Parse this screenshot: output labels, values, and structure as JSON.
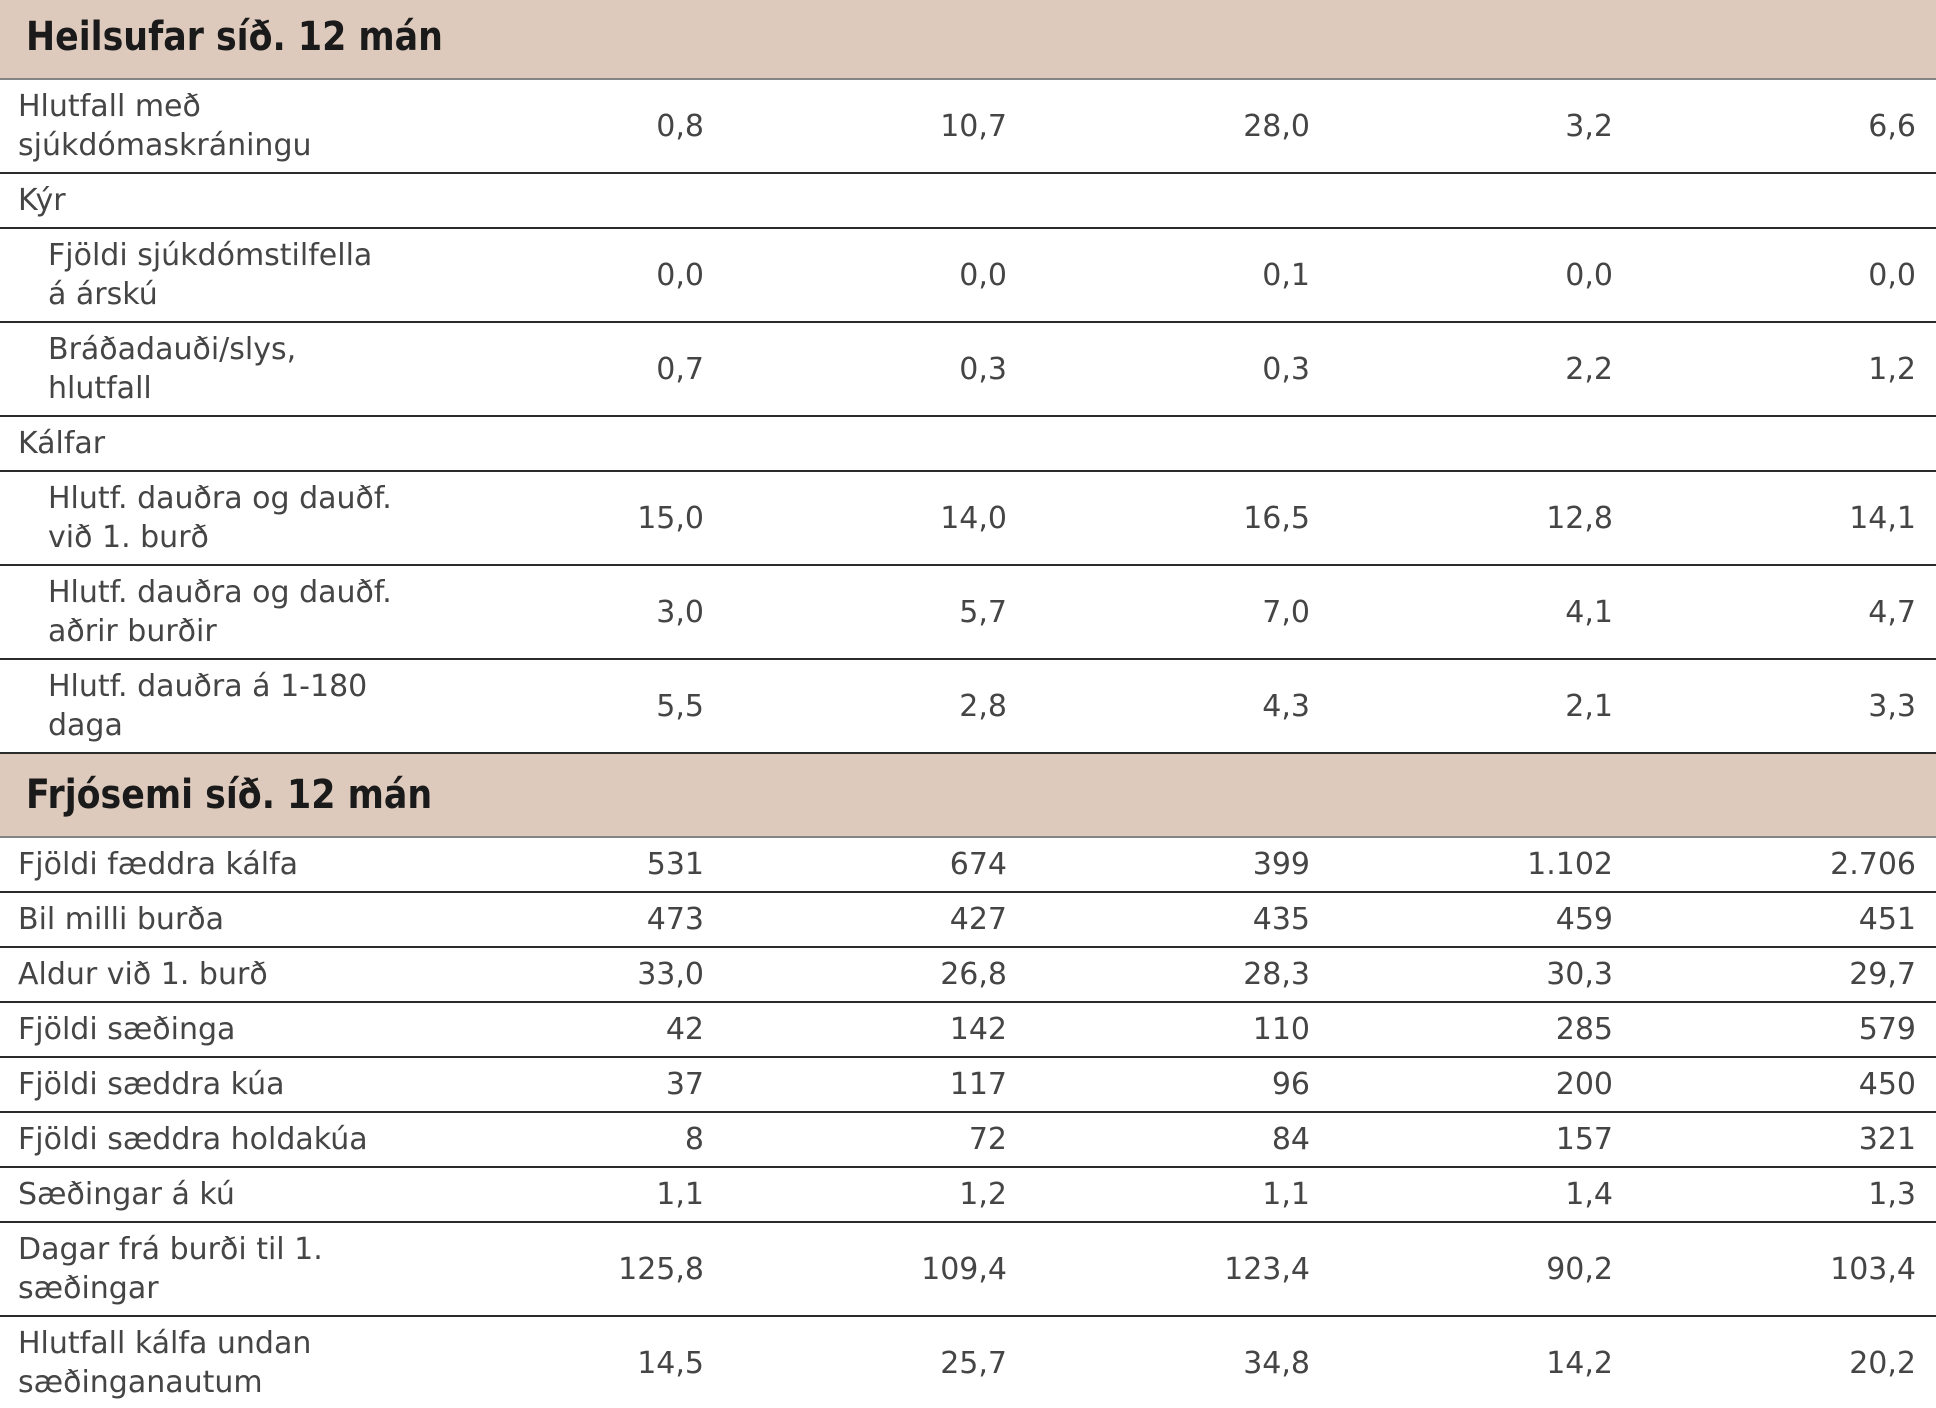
{
  "colors": {
    "section_header_bg": "#ddcabc",
    "section_header_text": "#1a1a1a",
    "row_border": "#2b2b2b",
    "section_header_border": "#848484",
    "body_text": "#454545",
    "page_bg": "#ffffff"
  },
  "chart_data": {
    "type": "table",
    "value_columns_count": 5,
    "number_format": "icelandic (decimal comma, dot thousands separator)",
    "sections": [
      {
        "title": "Heilsufar síð. 12 mán",
        "rows": [
          {
            "label": "Hlutfall með sjúkdómaskráningu",
            "label_lines": [
              "Hlutfall með",
              "sjúkdómaskráningu"
            ],
            "indent": false,
            "values": [
              "0,8",
              "10,7",
              "28,0",
              "3,2",
              "6,6"
            ]
          },
          {
            "label": "Kýr",
            "label_lines": [
              "Kýr"
            ],
            "subheader": true,
            "values": []
          },
          {
            "label": "Fjöldi sjúkdómstilfella á árskú",
            "label_lines": [
              "Fjöldi sjúkdómstilfella",
              "á árskú"
            ],
            "indent": true,
            "values": [
              "0,0",
              "0,0",
              "0,1",
              "0,0",
              "0,0"
            ]
          },
          {
            "label": "Bráðadauði/slys, hlutfall",
            "label_lines": [
              "Bráðadauði/slys,",
              "hlutfall"
            ],
            "indent": true,
            "values": [
              "0,7",
              "0,3",
              "0,3",
              "2,2",
              "1,2"
            ]
          },
          {
            "label": "Kálfar",
            "label_lines": [
              "Kálfar"
            ],
            "subheader": true,
            "values": []
          },
          {
            "label": "Hlutf. dauðra og dauðf. við 1. burð",
            "label_lines": [
              "Hlutf. dauðra og dauðf.",
              "við 1. burð"
            ],
            "indent": true,
            "values": [
              "15,0",
              "14,0",
              "16,5",
              "12,8",
              "14,1"
            ]
          },
          {
            "label": "Hlutf. dauðra og dauðf. aðrir burðir",
            "label_lines": [
              "Hlutf. dauðra og dauðf.",
              "aðrir burðir"
            ],
            "indent": true,
            "values": [
              "3,0",
              "5,7",
              "7,0",
              "4,1",
              "4,7"
            ]
          },
          {
            "label": "Hlutf. dauðra á 1-180 daga",
            "label_lines": [
              "Hlutf. dauðra á 1-180",
              "daga"
            ],
            "indent": true,
            "values": [
              "5,5",
              "2,8",
              "4,3",
              "2,1",
              "3,3"
            ]
          }
        ]
      },
      {
        "title": "Frjósemi síð. 12 mán",
        "rows": [
          {
            "label": "Fjöldi fæddra kálfa",
            "label_lines": [
              "Fjöldi fæddra kálfa"
            ],
            "indent": false,
            "values": [
              "531",
              "674",
              "399",
              "1.102",
              "2.706"
            ]
          },
          {
            "label": "Bil milli burða",
            "label_lines": [
              "Bil milli burða"
            ],
            "indent": false,
            "values": [
              "473",
              "427",
              "435",
              "459",
              "451"
            ]
          },
          {
            "label": "Aldur við 1. burð",
            "label_lines": [
              "Aldur við 1. burð"
            ],
            "indent": false,
            "values": [
              "33,0",
              "26,8",
              "28,3",
              "30,3",
              "29,7"
            ]
          },
          {
            "label": "Fjöldi sæðinga",
            "label_lines": [
              "Fjöldi sæðinga"
            ],
            "indent": false,
            "values": [
              "42",
              "142",
              "110",
              "285",
              "579"
            ]
          },
          {
            "label": "Fjöldi sæddra kúa",
            "label_lines": [
              "Fjöldi sæddra kúa"
            ],
            "indent": false,
            "values": [
              "37",
              "117",
              "96",
              "200",
              "450"
            ]
          },
          {
            "label": "Fjöldi sæddra holdakúa",
            "label_lines": [
              "Fjöldi sæddra holdakúa"
            ],
            "indent": false,
            "values": [
              "8",
              "72",
              "84",
              "157",
              "321"
            ]
          },
          {
            "label": "Sæðingar á kú",
            "label_lines": [
              "Sæðingar á kú"
            ],
            "indent": false,
            "values": [
              "1,1",
              "1,2",
              "1,1",
              "1,4",
              "1,3"
            ]
          },
          {
            "label": "Dagar frá burði til 1. sæðingar",
            "label_lines": [
              "Dagar frá burði til 1.",
              "sæðingar"
            ],
            "indent": false,
            "values": [
              "125,8",
              "109,4",
              "123,4",
              "90,2",
              "103,4"
            ]
          },
          {
            "label": "Hlutfall kálfa undan sæðinganautum",
            "label_lines": [
              "Hlutfall kálfa undan",
              "sæðinganautum"
            ],
            "indent": false,
            "values": [
              "14,5",
              "25,7",
              "34,8",
              "14,2",
              "20,2"
            ]
          }
        ]
      }
    ]
  }
}
